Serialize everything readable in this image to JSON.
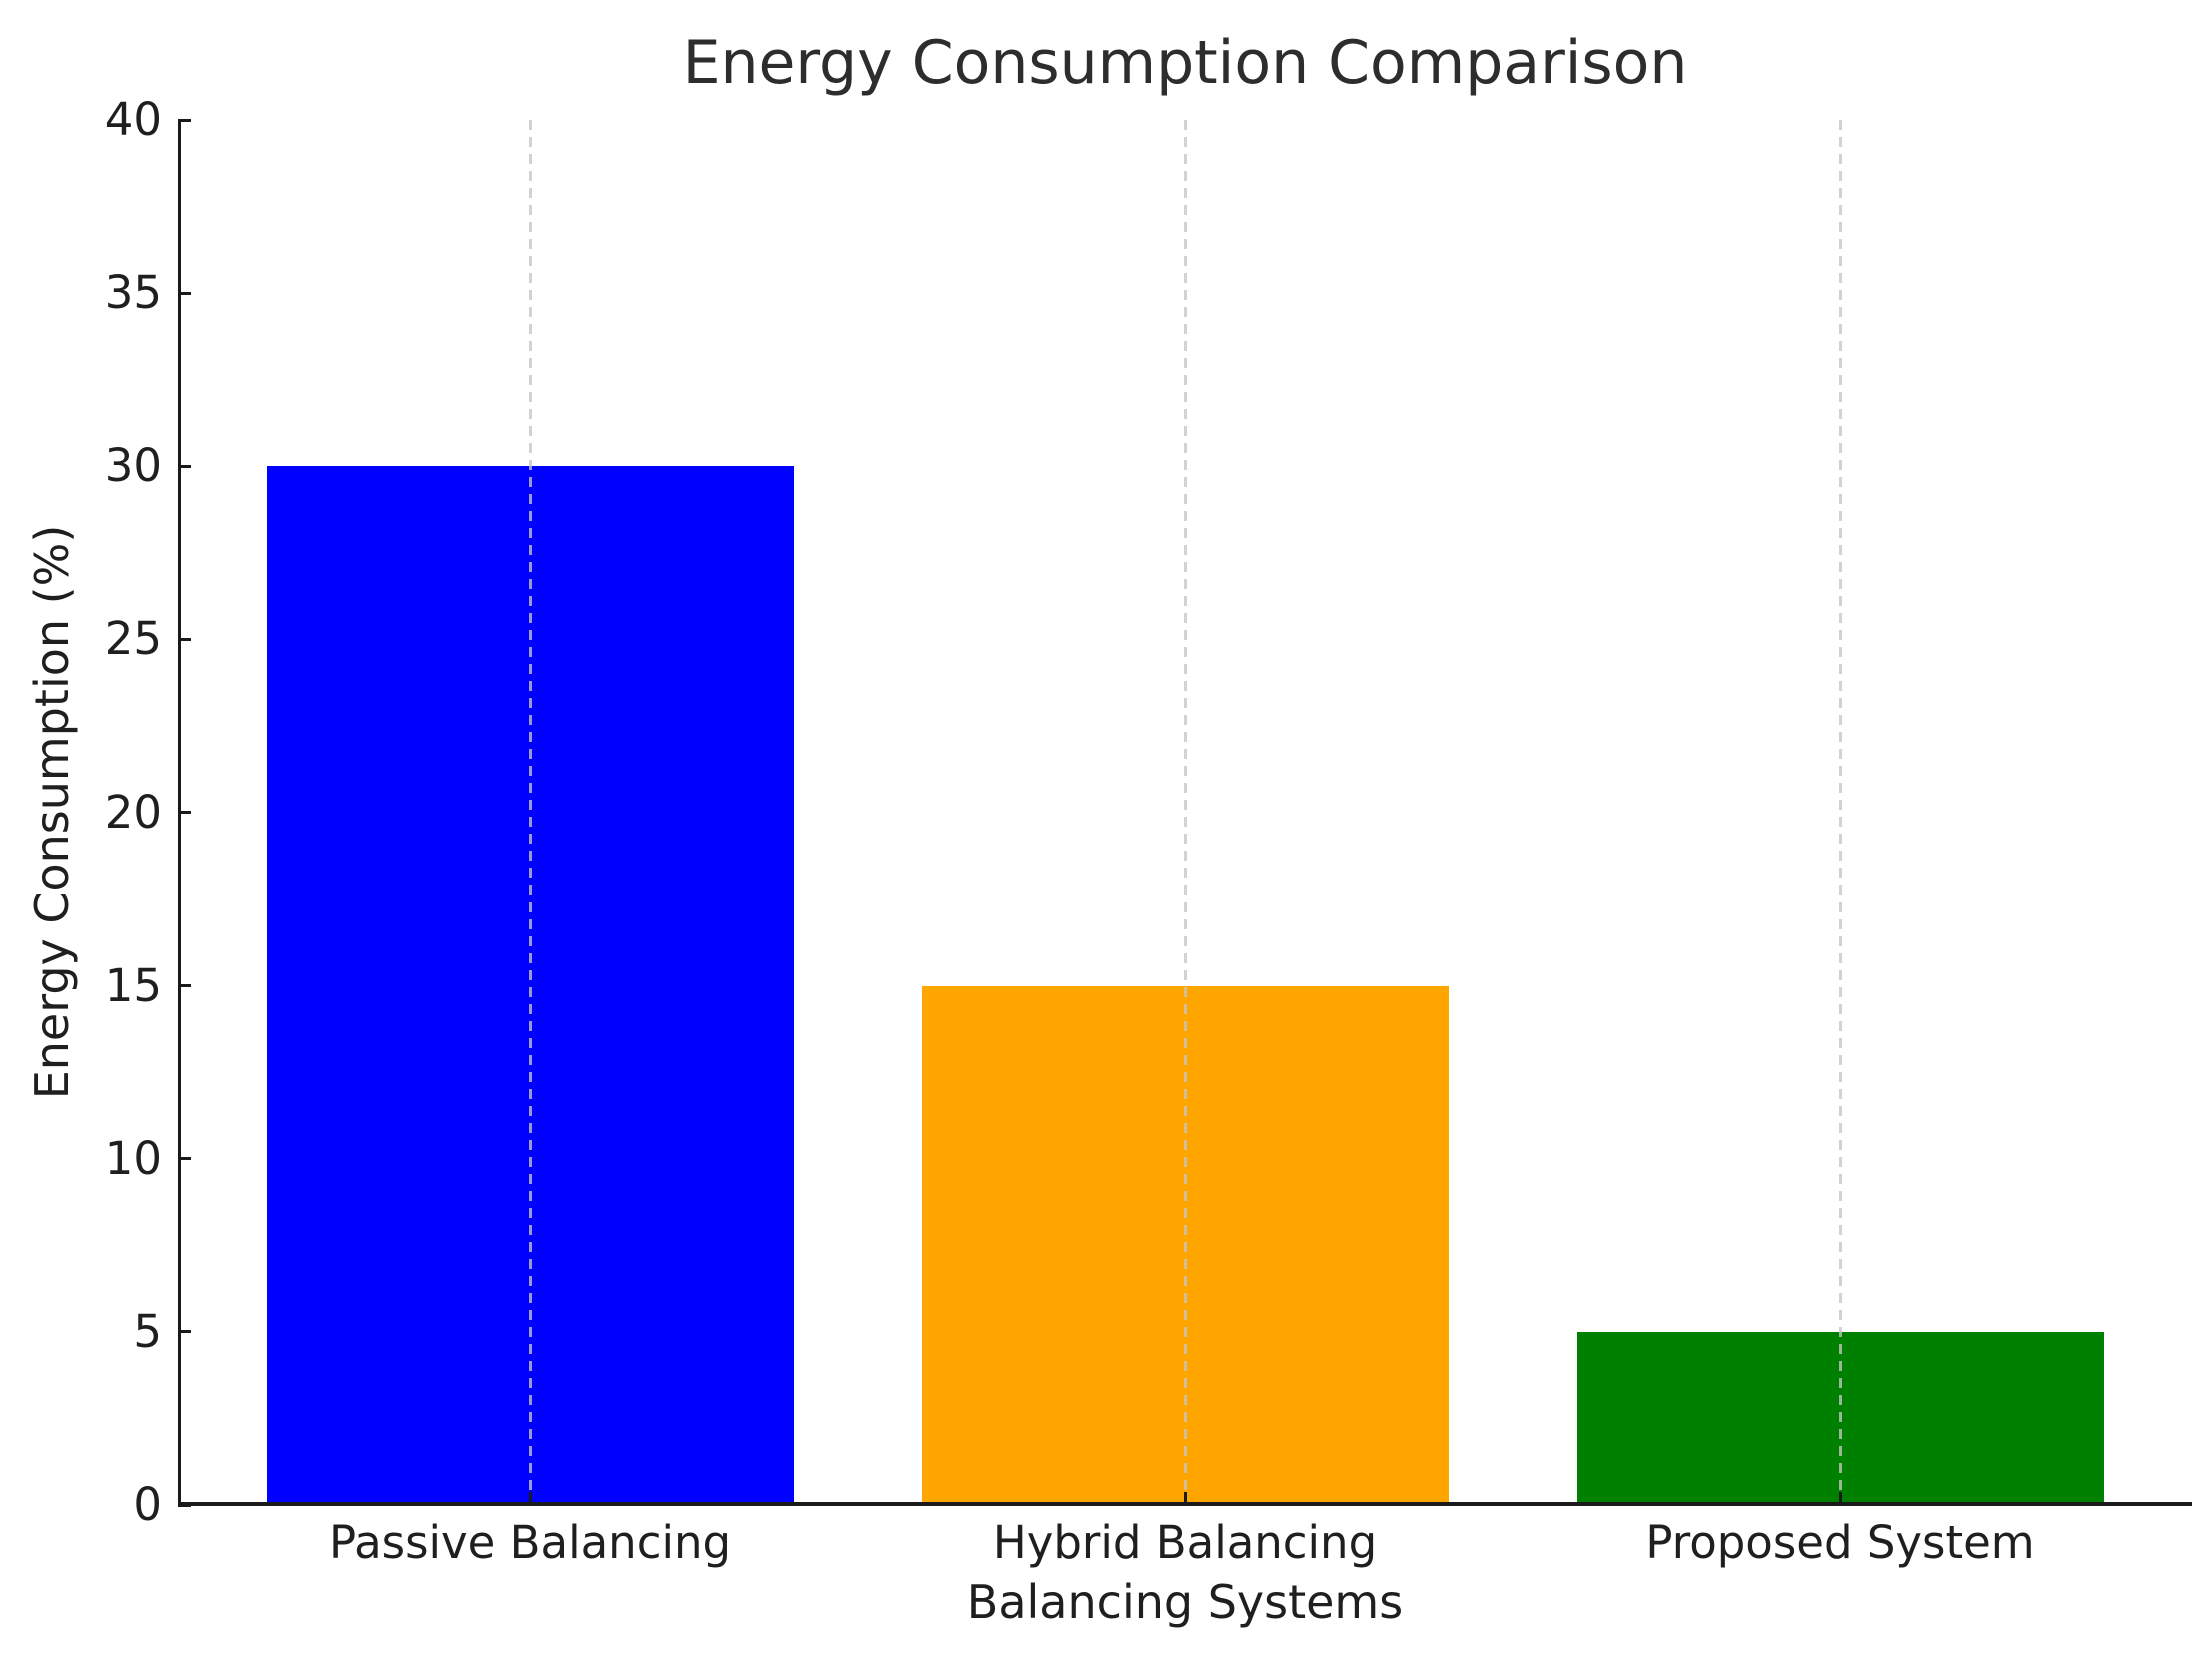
{
  "chart_data": {
    "type": "bar",
    "title": "Energy Consumption Comparison",
    "xlabel": "Balancing Systems",
    "ylabel": "Energy Consumption (%)",
    "categories": [
      "Passive Balancing",
      "Hybrid Balancing",
      "Proposed System"
    ],
    "values": [
      30,
      15,
      5
    ],
    "bar_colors": [
      "#0000ff",
      "#ffa500",
      "#008000"
    ],
    "ylim": [
      0,
      40
    ],
    "yticks": [
      0,
      5,
      10,
      15,
      20,
      25,
      30,
      35,
      40
    ],
    "grid": "vertical dashed gridlines at each bar center",
    "legend_position": "none"
  },
  "colors": {
    "background": "#ffffff",
    "axis": "#1a1a1a",
    "text": "#1f1f1f",
    "gridline": "#c6c6c6"
  }
}
